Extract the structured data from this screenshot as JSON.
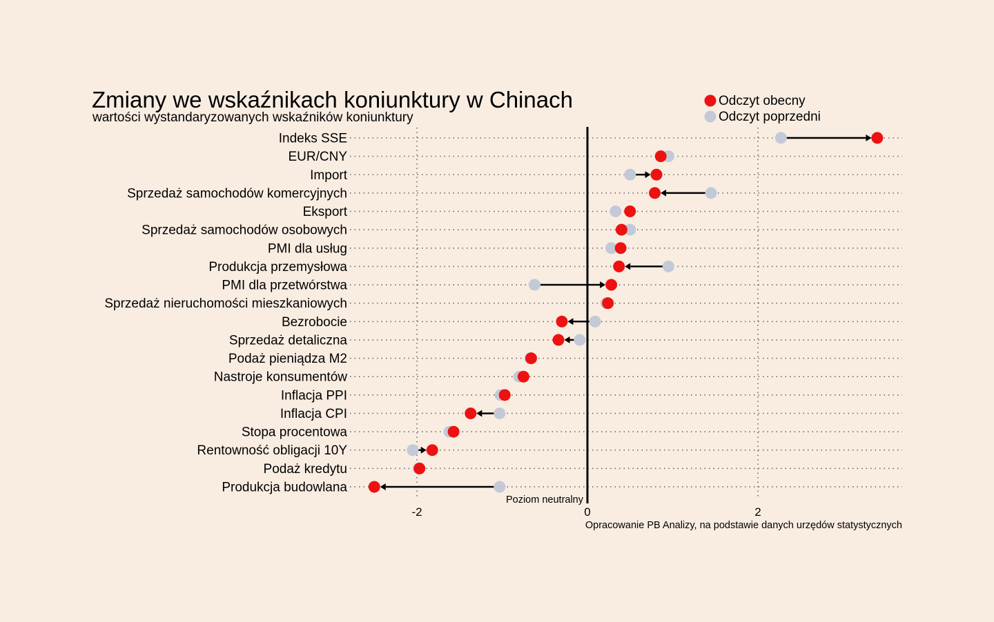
{
  "chart_data": {
    "type": "dumbbell",
    "title": "Zmiany we wskaźnikach koniunktury w Chinach",
    "subtitle": "wartości wystandaryzowanych wskaźników koniunktury",
    "source": "Opracowanie PB Analizy, na podstawie danych urzędów statystycznych",
    "zero_label": "Poziom neutralny",
    "x_ticks": [
      -2,
      0,
      2
    ],
    "x_tick_labels": [
      "-2",
      "0",
      "2"
    ],
    "xlim": [
      -2.78,
      3.7
    ],
    "grid": true,
    "legend_position": "top-right",
    "legend": [
      {
        "name": "Odczyt obecny",
        "color": "#ee1111"
      },
      {
        "name": "Odczyt poprzedni",
        "color": "#c3c9d6"
      }
    ],
    "colors": {
      "current": "#ee1111",
      "previous": "#c3c9d6",
      "background": "#f9ede2"
    },
    "categories": [
      {
        "label": "Indeks SSE",
        "previous": 2.27,
        "current": 3.4
      },
      {
        "label": "EUR/CNY",
        "previous": 0.95,
        "current": 0.86
      },
      {
        "label": "Import",
        "previous": 0.5,
        "current": 0.81
      },
      {
        "label": "Sprzedaż samochodów komercyjnych",
        "previous": 1.45,
        "current": 0.79
      },
      {
        "label": "Eksport",
        "previous": 0.33,
        "current": 0.5
      },
      {
        "label": "Sprzedaż samochodów osobowych",
        "previous": 0.5,
        "current": 0.4
      },
      {
        "label": "PMI dla usług",
        "previous": 0.28,
        "current": 0.39
      },
      {
        "label": "Produkcja przemysłowa",
        "previous": 0.95,
        "current": 0.37
      },
      {
        "label": "PMI dla przetwórstwa",
        "previous": -0.62,
        "current": 0.28
      },
      {
        "label": "Sprzedaż nieruchomości mieszkaniowych",
        "previous": 0.22,
        "current": 0.24
      },
      {
        "label": "Bezrobocie",
        "previous": 0.09,
        "current": -0.3
      },
      {
        "label": "Sprzedaż detaliczna",
        "previous": -0.09,
        "current": -0.34
      },
      {
        "label": "Podaż pieniądza M2",
        "previous": -0.67,
        "current": -0.66
      },
      {
        "label": "Nastroje konsumentów",
        "previous": -0.8,
        "current": -0.75
      },
      {
        "label": "Inflacja PPI",
        "previous": -1.02,
        "current": -0.97
      },
      {
        "label": "Inflacja CPI",
        "previous": -1.03,
        "current": -1.37
      },
      {
        "label": "Stopa procentowa",
        "previous": -1.62,
        "current": -1.57
      },
      {
        "label": "Rentowność obligacji 10Y",
        "previous": -2.05,
        "current": -1.82
      },
      {
        "label": "Podaż kredytu",
        "previous": -1.98,
        "current": -1.97
      },
      {
        "label": "Produkcja budowlana",
        "previous": -1.03,
        "current": -2.5
      }
    ]
  }
}
